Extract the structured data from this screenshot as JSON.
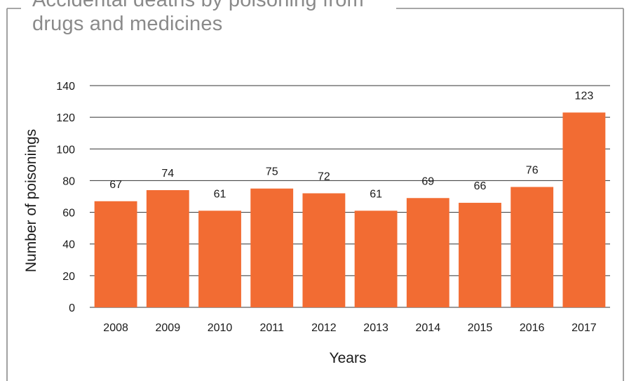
{
  "title": {
    "line1": "Accidental deaths by poisoning from",
    "line2": "drugs and medicines"
  },
  "colors": {
    "bar": "#f26c33",
    "frame": "#8a8a8a",
    "title": "#8a8a8a",
    "grid": "#333333"
  },
  "chart_data": {
    "type": "bar",
    "title": "Accidental deaths by poisoning from drugs and medicines",
    "xlabel": "Years",
    "ylabel": "Number of poisonings",
    "categories": [
      "2008",
      "2009",
      "2010",
      "2011",
      "2012",
      "2013",
      "2014",
      "2015",
      "2016",
      "2017"
    ],
    "values": [
      67,
      74,
      61,
      75,
      72,
      61,
      69,
      66,
      76,
      123
    ],
    "ylim": [
      0,
      140
    ],
    "yticks": [
      0,
      20,
      40,
      60,
      80,
      100,
      120,
      140
    ],
    "grid": true,
    "data_labels": true,
    "legend": "none"
  }
}
